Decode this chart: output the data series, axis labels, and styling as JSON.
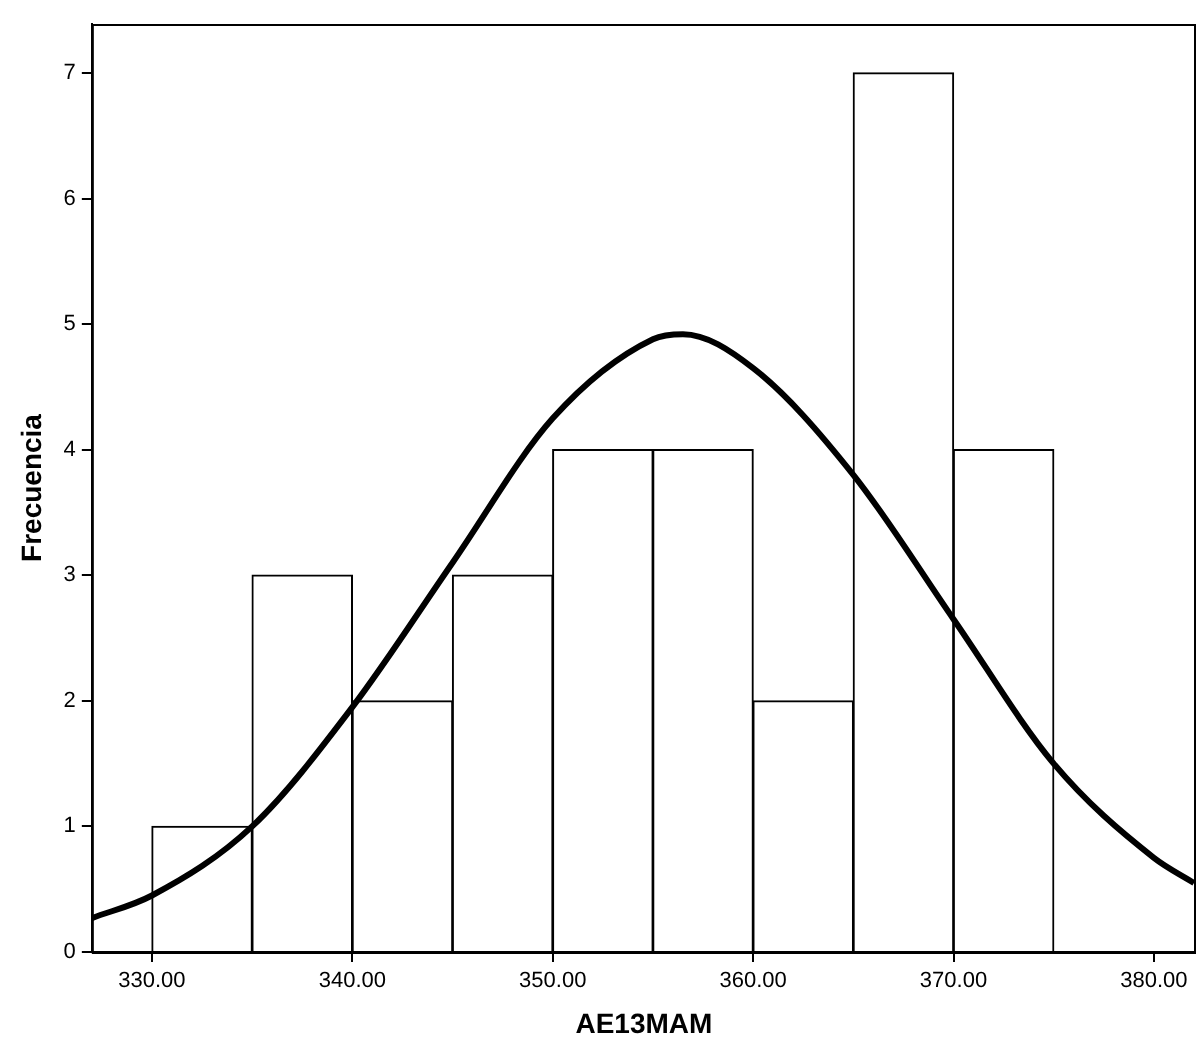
{
  "chart_data": {
    "type": "histogram",
    "xlabel": "AE13MAM",
    "ylabel": "Frecuencia",
    "bins": [
      330,
      335,
      340,
      345,
      350,
      355,
      360,
      365,
      370,
      375
    ],
    "values": [
      1,
      3,
      2,
      3,
      4,
      4,
      2,
      7,
      4
    ],
    "color": "#ffffff",
    "series": [
      {
        "type": "line",
        "color": "#000000",
        "x": [
          327,
          330,
          335,
          340,
          345,
          350,
          355,
          356.5,
          360,
          365,
          370,
          375,
          380,
          382
        ],
        "values": [
          0.27,
          0.45,
          1.0,
          1.95,
          3.1,
          4.25,
          4.88,
          4.92,
          4.65,
          3.8,
          2.65,
          1.5,
          0.75,
          0.55
        ]
      }
    ],
    "xlim": [
      327,
      382.1
    ],
    "xticks": [
      {
        "value": 330,
        "label": "330.00"
      },
      {
        "value": 340,
        "label": "340.00"
      },
      {
        "value": 350,
        "label": "350.00"
      },
      {
        "value": 360,
        "label": "360.00"
      },
      {
        "value": 370,
        "label": "370.00"
      },
      {
        "value": 380,
        "label": "380.00"
      }
    ],
    "ylim": [
      0,
      7.39
    ],
    "yticks": [
      0,
      1,
      2,
      3,
      4,
      5,
      6,
      7
    ],
    "grid": false,
    "legend": false,
    "marker": "none"
  }
}
